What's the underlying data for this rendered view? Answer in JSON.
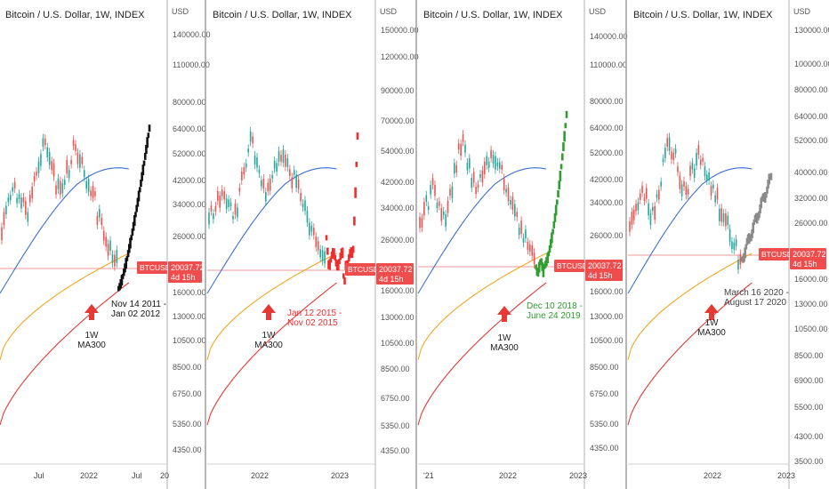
{
  "colors": {
    "candle_up": "#26a69a",
    "candle_down": "#ef5350",
    "ma_blue": "#3b6fd6",
    "ma_orange": "#f5a623",
    "ma_red": "#e53935",
    "price_line": "#ef9a9a",
    "badge_red": "#ef4d4d",
    "overlay_black": "#111111",
    "overlay_red": "#ef2d2d",
    "overlay_green": "#2e9e2e",
    "overlay_gray": "#8a8a8a",
    "panel_border": "#9e9e9e"
  },
  "price_badge": {
    "symbol": "BTCUSD",
    "price": "20037.72",
    "countdown": "4d 15h"
  },
  "axis_unit": "USD",
  "chart_data": [
    {
      "type": "line",
      "title": "Bitcoin / U.S. Dollar, 1W, INDEX",
      "axis_labels": [
        "140000.00",
        "110000.00",
        "80000.00",
        "64000.00",
        "52000.00",
        "42000.00",
        "34000.00",
        "26000.00",
        "16000.00",
        "13000.00",
        "10500.00",
        "8500.00",
        "6750.00",
        "5350.00",
        "4350.00"
      ],
      "x_labels": [
        "Jul",
        "2022",
        "Jul",
        "20"
      ],
      "annotation": {
        "text": [
          "Nov 14 2011 -",
          "Jan 02 2012"
        ],
        "color": "#111111"
      },
      "arrow_label": [
        "1W",
        "MA300"
      ],
      "overlay_color": "#111111",
      "overlay_pattern": "2011 fractal (Nov 14 2011 - Jan 02 2012)"
    },
    {
      "type": "line",
      "title": "Bitcoin / U.S. Dollar, 1W, INDEX",
      "axis_labels": [
        "150000.00",
        "120000.00",
        "90000.00",
        "70000.00",
        "54000.00",
        "42000.00",
        "34000.00",
        "26000.00",
        "16000.00",
        "13000.00",
        "10500.00",
        "8500.00",
        "6750.00",
        "5350.00",
        "4350.00"
      ],
      "x_labels": [
        "2022",
        "2023"
      ],
      "annotation": {
        "text": [
          "Jan 12 2015 -",
          "Nov 02 2015"
        ],
        "color": "#ef2d2d"
      },
      "arrow_label": [
        "1W",
        "MA300"
      ],
      "overlay_color": "#ef2d2d",
      "overlay_pattern": "2015 fractal (Jan 12 2015 - Nov 02 2015)"
    },
    {
      "type": "line",
      "title": "Bitcoin / U.S. Dollar, 1W, INDEX",
      "axis_labels": [
        "140000.00",
        "110000.00",
        "80000.00",
        "64000.00",
        "52000.00",
        "42000.00",
        "34000.00",
        "26000.00",
        "16000.00",
        "13000.00",
        "10500.00",
        "8500.00",
        "6750.00",
        "5350.00",
        "4350.00"
      ],
      "x_labels": [
        "'21",
        "2022",
        "2023"
      ],
      "annotation": {
        "text": [
          "Dec 10 2018 -",
          "June 24 2019"
        ],
        "color": "#2e9e2e"
      },
      "arrow_label": [
        "1W",
        "MA300"
      ],
      "overlay_color": "#2e9e2e",
      "overlay_pattern": "2019 fractal (Dec 10 2018 - June 24 2019)"
    },
    {
      "type": "line",
      "title": "Bitcoin / U.S. Dollar, 1W, INDEX",
      "axis_labels": [
        "130000.00",
        "100000.00",
        "80000.00",
        "64000.00",
        "52000.00",
        "40000.00",
        "32000.00",
        "26000.00",
        "16000.00",
        "13000.00",
        "10500.00",
        "8500.00",
        "6900.00",
        "5500.00",
        "4300.00",
        "3500.00"
      ],
      "x_labels": [
        "2022",
        "2023"
      ],
      "annotation": {
        "text": [
          "March 16 2020 -",
          "August 17 2020"
        ],
        "color": "#444444"
      },
      "arrow_label": [
        "1W",
        "MA300"
      ],
      "overlay_color": "#8a8a8a",
      "overlay_pattern": "2020 fractal (March 16 2020 - August 17 2020)"
    }
  ]
}
